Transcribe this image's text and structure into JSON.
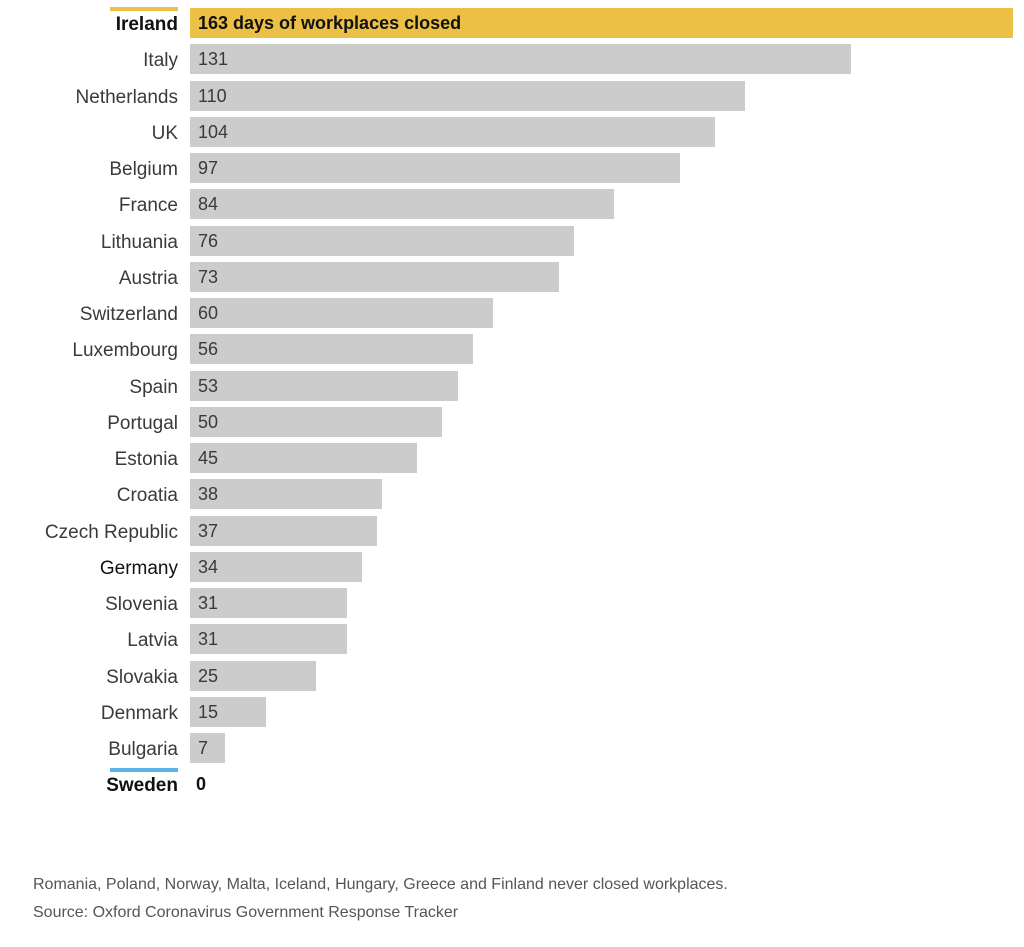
{
  "chart_data": {
    "type": "bar",
    "orientation": "horizontal",
    "value_label_suffix_first": " days of workplaces closed",
    "categories": [
      "Ireland",
      "Italy",
      "Netherlands",
      "UK",
      "Belgium",
      "France",
      "Lithuania",
      "Austria",
      "Switzerland",
      "Luxembourg",
      "Spain",
      "Portugal",
      "Estonia",
      "Croatia",
      "Czech Republic",
      "Germany",
      "Slovenia",
      "Latvia",
      "Slovakia",
      "Denmark",
      "Bulgaria",
      "Sweden"
    ],
    "values": [
      163,
      131,
      110,
      104,
      97,
      84,
      76,
      73,
      60,
      56,
      53,
      50,
      45,
      38,
      37,
      34,
      31,
      31,
      25,
      15,
      7,
      0
    ],
    "value_labels": [
      "163 days of workplaces closed",
      "131",
      "110",
      "104",
      "97",
      "84",
      "76",
      "73",
      "60",
      "56",
      "53",
      "50",
      "45",
      "38",
      "37",
      "34",
      "31",
      "31",
      "25",
      "15",
      "7",
      "0"
    ],
    "highlight": {
      "Ireland": "#ecc045",
      "Sweden": "#5ab4e5"
    },
    "bar_color": "#cccccc",
    "xlim": [
      0,
      163
    ],
    "grid": false,
    "legend": "none"
  },
  "footer": {
    "note": "Romania, Poland, Norway, Malta, Iceland, Hungary, Greece and Finland never closed workplaces.",
    "source": "Source: Oxford Coronavirus Government Response Tracker"
  }
}
